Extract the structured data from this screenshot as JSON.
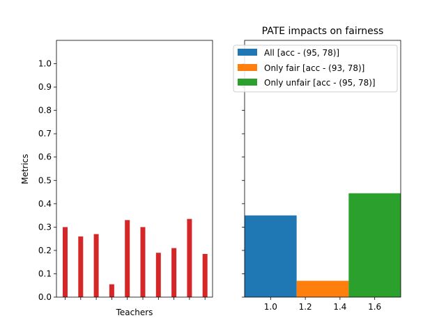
{
  "chart_data": [
    {
      "type": "bar",
      "title": "",
      "xlabel": "Teachers",
      "ylabel": "Metrics",
      "ylim": [
        0,
        1.1
      ],
      "yticks": [
        "0.0",
        "0.1",
        "0.2",
        "0.3",
        "0.4",
        "0.5",
        "0.6",
        "0.7",
        "0.8",
        "0.9",
        "1.0"
      ],
      "yticks_values": [
        0,
        0.1,
        0.2,
        0.3,
        0.4,
        0.5,
        0.6,
        0.7,
        0.8,
        0.9,
        1.0
      ],
      "values": [
        0.3,
        0.26,
        0.27,
        0.055,
        0.33,
        0.3,
        0.19,
        0.21,
        0.335,
        0.185
      ],
      "bar_color": "#d62728",
      "grid": false
    },
    {
      "type": "bar",
      "title": "PATE impacts on fairness",
      "xlabel": "",
      "ylabel": "",
      "ylim": [
        0,
        1.1
      ],
      "xlim": [
        0.85,
        1.75
      ],
      "xticks": [
        "1.0",
        "1.2",
        "1.4",
        "1.6"
      ],
      "xticks_values": [
        1.0,
        1.2,
        1.4,
        1.6
      ],
      "legend_position": "upper-right",
      "grid": false,
      "series": [
        {
          "name": "All [acc - (95, 78)]",
          "x": 1.0,
          "width": 0.3,
          "value": 0.35,
          "color": "#1f77b4"
        },
        {
          "name": "Only fair [acc - (93, 78)]",
          "x": 1.3,
          "width": 0.3,
          "value": 0.07,
          "color": "#ff7f0e"
        },
        {
          "name": "Only unfair [acc - (95, 78)]",
          "x": 1.6,
          "width": 0.3,
          "value": 0.445,
          "color": "#2ca02c"
        }
      ]
    }
  ]
}
